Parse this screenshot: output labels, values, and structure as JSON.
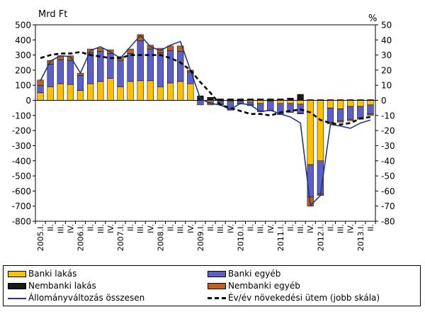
{
  "chart_data": {
    "type": "bar",
    "stacked": true,
    "left_axis_unit": "Mrd Ft",
    "right_axis_unit": "%",
    "ylim_left": [
      -800,
      500
    ],
    "ylim_right": [
      -80,
      50
    ],
    "yticks_left": [
      -800,
      -700,
      -600,
      -500,
      -400,
      -300,
      -200,
      -100,
      0,
      100,
      200,
      300,
      400,
      500
    ],
    "yticks_right": [
      -80,
      -70,
      -60,
      -50,
      -40,
      -30,
      -20,
      -10,
      0,
      10,
      20,
      30,
      40,
      50
    ],
    "grid": false,
    "legend_position": "bottom",
    "categories": [
      "2005.I.",
      "II.",
      "III.",
      "IV.",
      "2006.I.",
      "II.",
      "III.",
      "IV.",
      "2007.I.",
      "II.",
      "III.",
      "IV.",
      "2008.I.",
      "II.",
      "III.",
      "IV.",
      "2009.I.",
      "II.",
      "III.",
      "IV.",
      "2010.I.",
      "II.",
      "III.",
      "IV.",
      "2011.I.",
      "II.",
      "III.",
      "IV.",
      "2012.I.",
      "II.",
      "III.",
      "IV.",
      "2013.I.",
      "II."
    ],
    "category_labels": [
      "2005.I.",
      "II.",
      "III.",
      "IV.",
      "2006.I.",
      "II.",
      "III.",
      "IV.",
      "2007.I.",
      "II.",
      "III.",
      "IV.",
      "2008.I.",
      "II.",
      "III.",
      "IV.",
      "2009.I.",
      "II.",
      "III.",
      "IV.",
      "2010.I.",
      "II.",
      "III.",
      "IV.",
      "2011.I.",
      "II.",
      "III.",
      "IV.",
      "2012.I.",
      "II.",
      "III.",
      "IV.",
      "2013.I.",
      "II."
    ],
    "colors": {
      "banki_lakas": "#ffc000",
      "banki_egyeb": "#5b5fc7",
      "nembanki_lakas": "#1a1a1a",
      "nembanki_egyeb": "#c0601e",
      "total_line": "#1f3a7a",
      "yoy_line": "#000000"
    },
    "series": [
      {
        "key": "banki_lakas",
        "name": "Banki lakás",
        "type": "bar",
        "axis": "left",
        "values": [
          50,
          90,
          110,
          105,
          65,
          110,
          125,
          145,
          90,
          125,
          130,
          130,
          90,
          115,
          125,
          110,
          0,
          -10,
          -5,
          -5,
          -5,
          -10,
          -20,
          -5,
          -20,
          -20,
          -25,
          -425,
          -400,
          -50,
          -55,
          -40,
          -40,
          -30
        ]
      },
      {
        "key": "banki_egyeb",
        "name": "Banki egyéb",
        "type": "bar",
        "axis": "left",
        "values": [
          50,
          150,
          160,
          160,
          100,
          205,
          200,
          165,
          175,
          185,
          265,
          210,
          225,
          215,
          200,
          80,
          -30,
          -10,
          -20,
          -55,
          -15,
          -20,
          -50,
          -60,
          -70,
          -60,
          -60,
          -215,
          -220,
          -95,
          -80,
          -85,
          -75,
          -60
        ]
      },
      {
        "key": "nembanki_lakas",
        "name": "Nembanki lakás",
        "type": "bar",
        "axis": "left",
        "values": [
          0,
          0,
          0,
          0,
          0,
          0,
          0,
          0,
          0,
          0,
          0,
          0,
          0,
          0,
          0,
          0,
          30,
          20,
          10,
          10,
          10,
          10,
          10,
          10,
          10,
          15,
          40,
          5,
          5,
          5,
          5,
          5,
          5,
          5
        ]
      },
      {
        "key": "nembanki_egyeb",
        "name": "Nembanki egyéb",
        "type": "bar",
        "axis": "left",
        "values": [
          35,
          25,
          25,
          30,
          15,
          25,
          20,
          25,
          25,
          30,
          40,
          25,
          30,
          30,
          35,
          10,
          0,
          -10,
          -5,
          -5,
          -5,
          -5,
          -5,
          -5,
          -5,
          0,
          -5,
          -60,
          -10,
          -10,
          -10,
          -10,
          -10,
          -10
        ]
      },
      {
        "key": "total_line",
        "name": "Állományváltozás összesen",
        "type": "line",
        "axis": "left",
        "values": [
          130,
          260,
          295,
          290,
          180,
          330,
          355,
          320,
          280,
          355,
          430,
          355,
          330,
          365,
          390,
          200,
          10,
          -20,
          -30,
          -60,
          -20,
          -30,
          -75,
          -65,
          -90,
          -110,
          -150,
          -695,
          -630,
          -160,
          -170,
          -185,
          -150,
          -130
        ]
      },
      {
        "key": "yoy_line",
        "name": "Év/év növekedési ütem (jobb skála)",
        "type": "line",
        "axis": "right",
        "dashed": true,
        "values": [
          28,
          30,
          31,
          31,
          32,
          30,
          29,
          28,
          28,
          30,
          30,
          30,
          30,
          28,
          25,
          20,
          12,
          5,
          -3,
          -5,
          -7,
          -9,
          -9,
          -10,
          -8,
          -7,
          -6,
          -8,
          -13,
          -15,
          -16,
          -15,
          -12,
          -11
        ]
      }
    ]
  },
  "legend": {
    "banki_lakas": "Banki lakás",
    "banki_egyeb": "Banki egyéb",
    "nembanki_lakas": "Nembanki lakás",
    "nembanki_egyeb": "Nembanki egyéb",
    "total_line": "Állományváltozás összesen",
    "yoy_line": "Év/év növekedési ütem (jobb skála)"
  }
}
